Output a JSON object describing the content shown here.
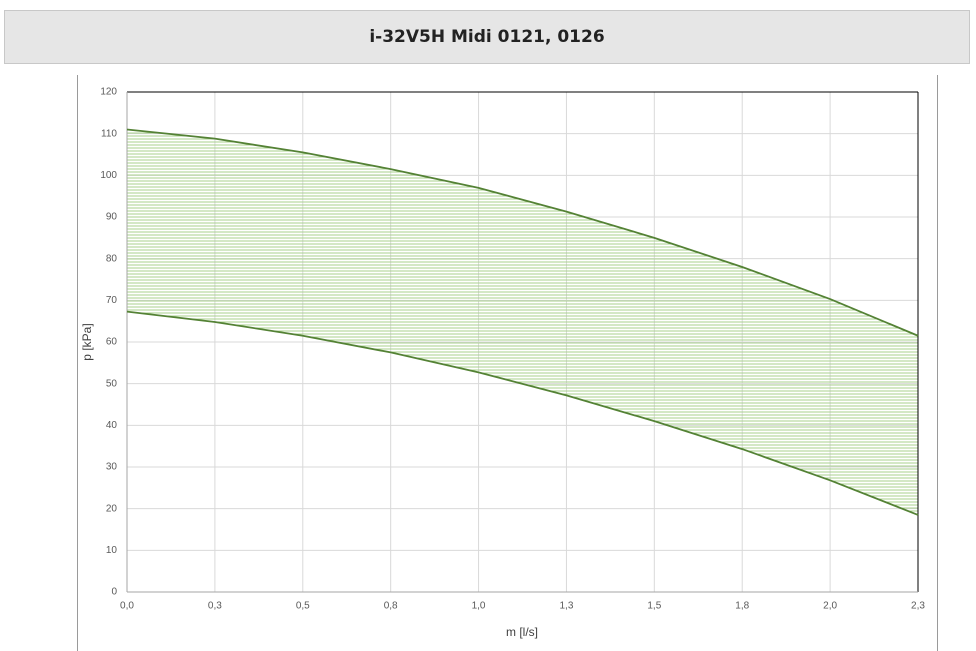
{
  "header": {
    "title": "i-32V5H Midi 0121, 0126"
  },
  "chart_data": {
    "type": "line",
    "x": [
      0,
      0.25,
      0.5,
      0.75,
      1.0,
      1.25,
      1.5,
      1.75,
      2.0,
      2.25
    ],
    "series": [
      {
        "color": "#548235",
        "values": [
          111,
          108.8,
          105.5,
          101.5,
          97,
          91.3,
          85,
          78,
          70.3,
          61.5
        ]
      },
      {
        "color": "#548235",
        "values": [
          67.3,
          64.8,
          61.5,
          57.5,
          52.7,
          47.2,
          41,
          34.3,
          26.8,
          18.5
        ]
      }
    ],
    "fill_between": true,
    "fill_color": "#a9d18e",
    "xlabel": "m [l/s]",
    "ylabel": "p [kPa]",
    "xlim": [
      0,
      2.25
    ],
    "xticks": [
      {
        "value": 0,
        "label": "0,0"
      },
      {
        "value": 0.25,
        "label": "0,3"
      },
      {
        "value": 0.5,
        "label": "0,5"
      },
      {
        "value": 0.75,
        "label": "0,8"
      },
      {
        "value": 1.0,
        "label": "1,0"
      },
      {
        "value": 1.25,
        "label": "1,3"
      },
      {
        "value": 1.5,
        "label": "1,5"
      },
      {
        "value": 1.75,
        "label": "1,8"
      },
      {
        "value": 2.0,
        "label": "2,0"
      },
      {
        "value": 2.25,
        "label": "2,3"
      }
    ],
    "ylim": [
      0,
      120
    ],
    "yticks": [
      0,
      10,
      20,
      30,
      40,
      50,
      60,
      70,
      80,
      90,
      100,
      110,
      120
    ],
    "grid": true
  }
}
